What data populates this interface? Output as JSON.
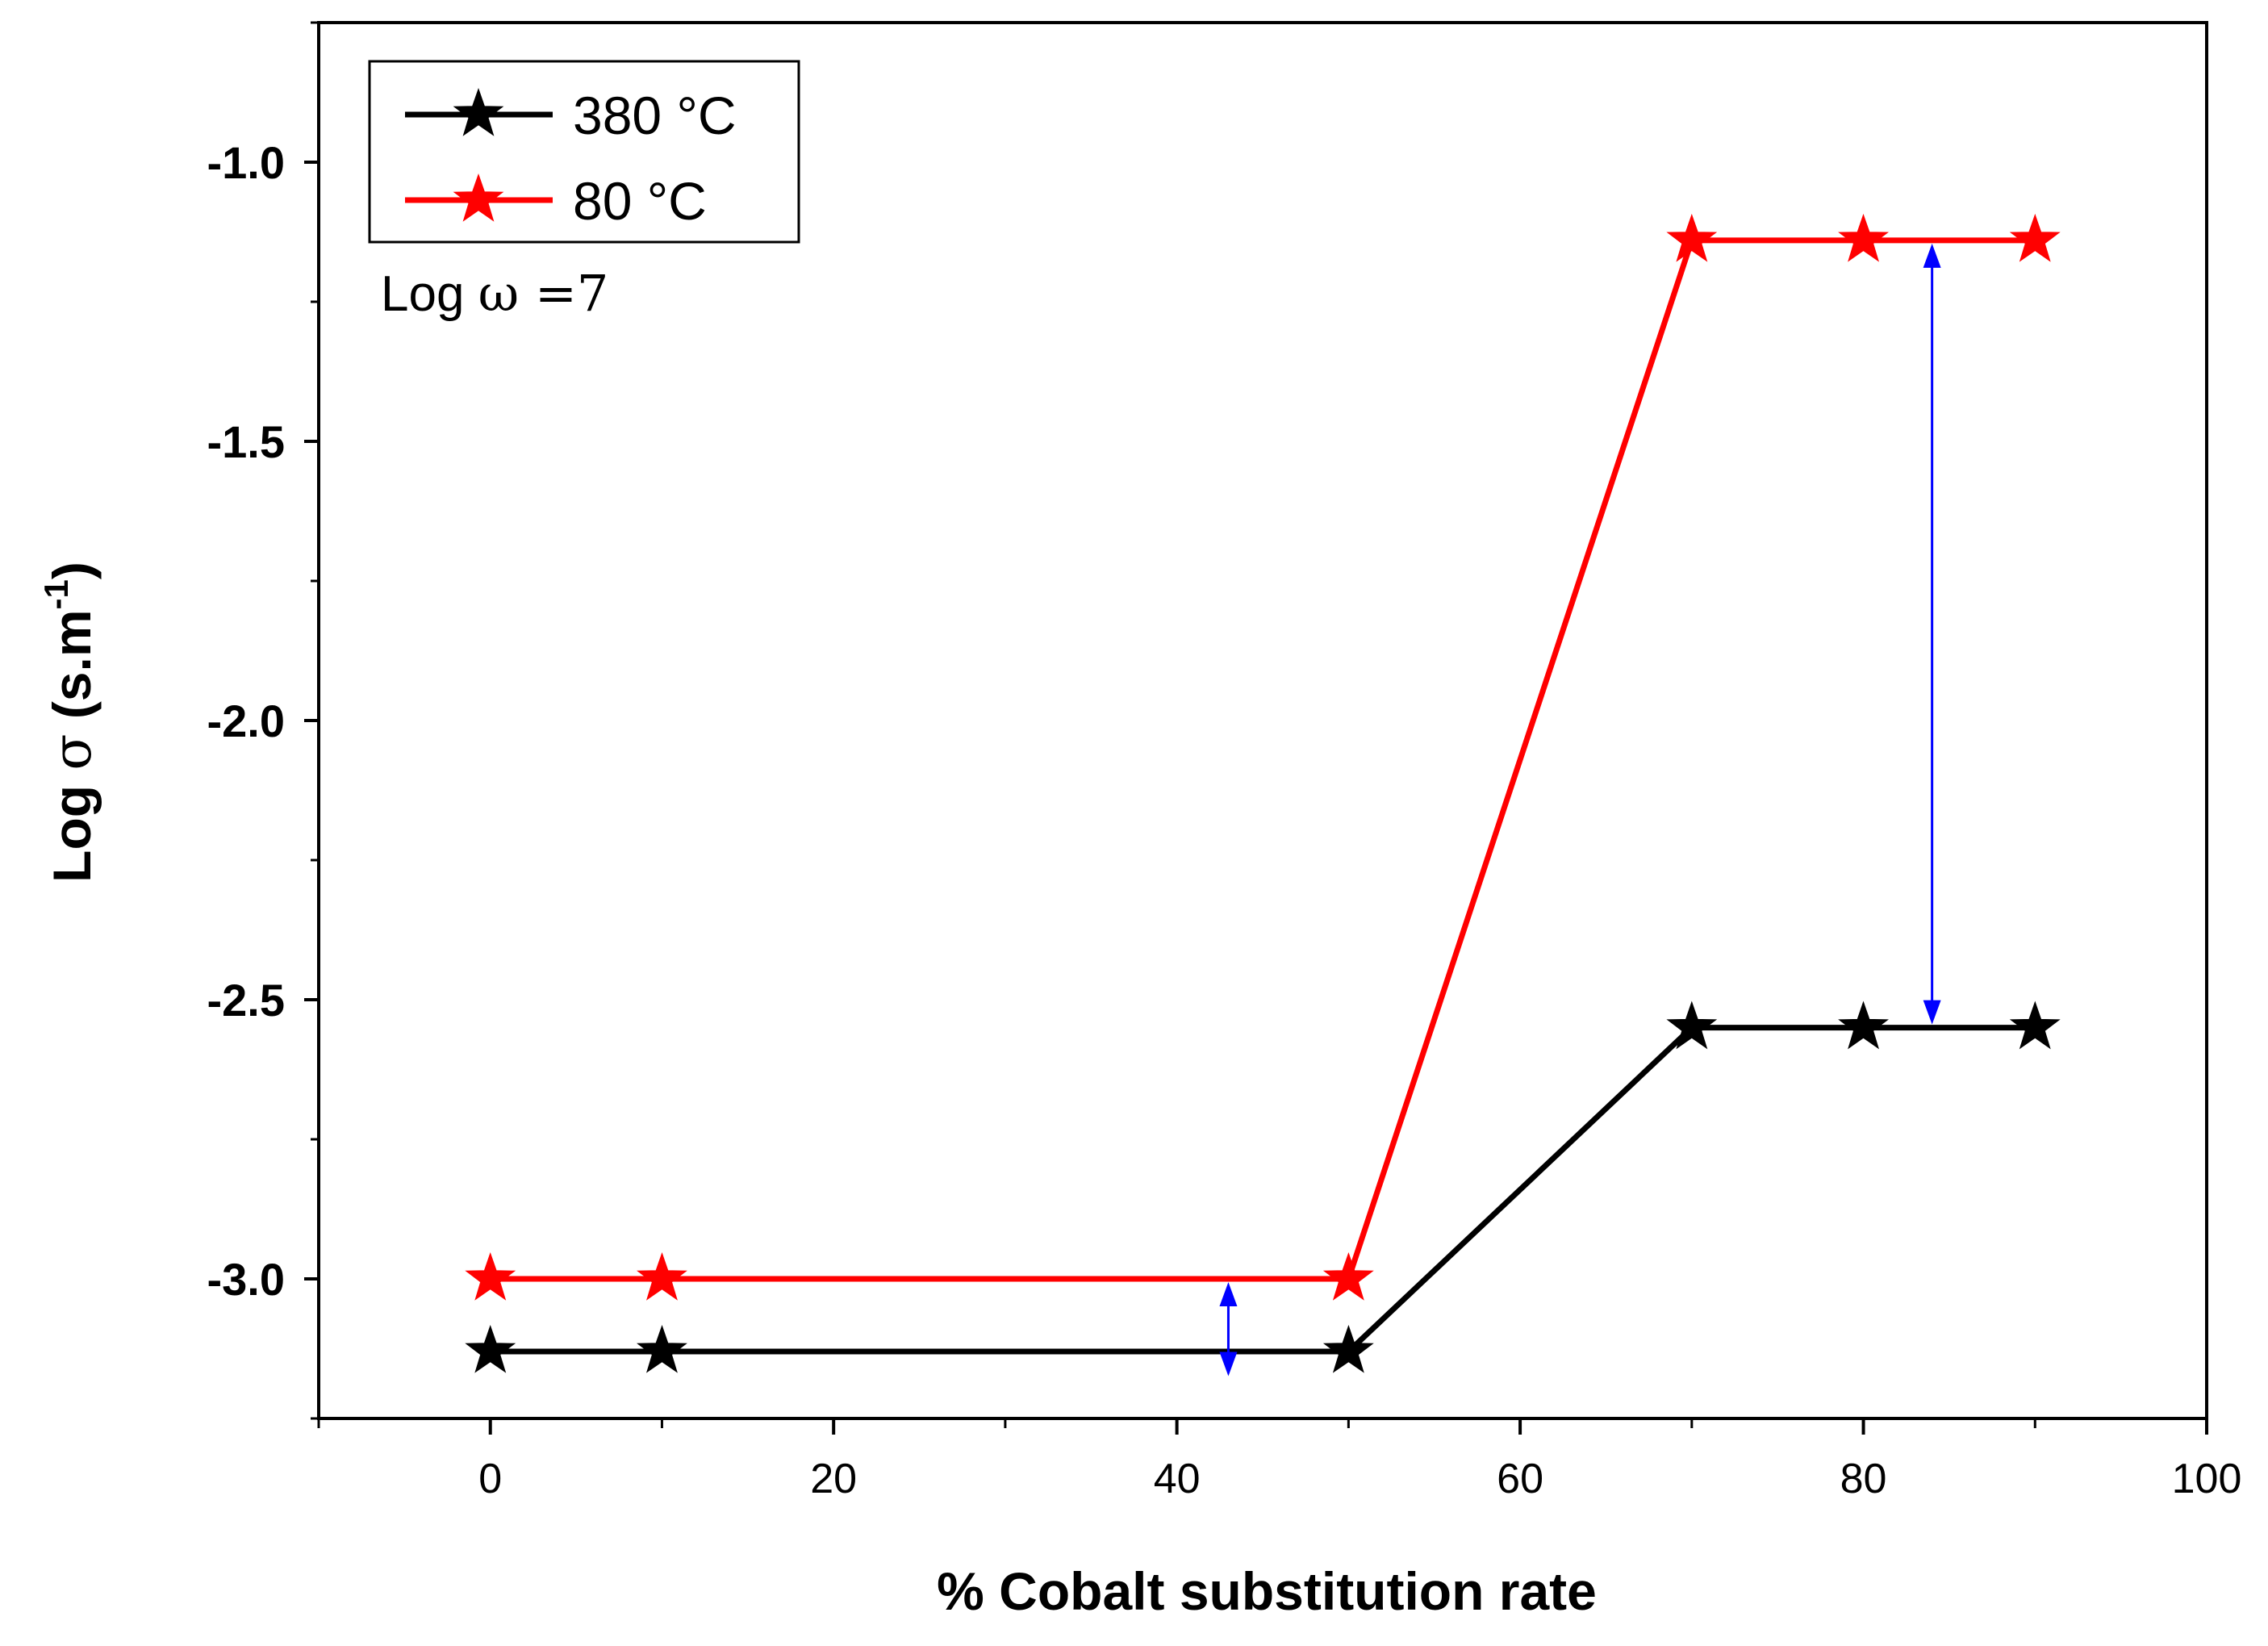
{
  "chart_data": {
    "type": "line",
    "title": "",
    "xlabel": "% Cobalt substitution rate",
    "ylabel": {
      "prefix": "Log ",
      "symbol": "σ",
      "unit": " (s.m",
      "superscript": "-1",
      "suffix": ")"
    },
    "xlim": [
      -10,
      100
    ],
    "ylim": [
      -3.25,
      -0.75
    ],
    "x_ticks": [
      0,
      20,
      40,
      60,
      80,
      100
    ],
    "x_tick_labels": [
      "0",
      "20",
      "40",
      "60",
      "80",
      "100"
    ],
    "y_ticks": [
      -3.0,
      -2.5,
      -2.0,
      -1.5,
      -1.0
    ],
    "y_tick_labels": [
      "-3.0",
      "-2.5",
      "-2.0",
      "-1.5",
      "-1.0"
    ],
    "x": [
      0,
      10,
      50,
      70,
      80,
      90
    ],
    "series": [
      {
        "name": "380 °C",
        "color": "#000000",
        "marker": "star",
        "values": [
          -3.13,
          -3.13,
          -3.13,
          -2.55,
          -2.55,
          -2.55
        ]
      },
      {
        "name": "80 °C",
        "color": "#ff0000",
        "marker": "star",
        "values": [
          -3.0,
          -3.0,
          -3.0,
          -1.14,
          -1.14,
          -1.14
        ]
      }
    ],
    "annotations": [
      {
        "type": "double-arrow",
        "color": "#0000ff",
        "x": 43,
        "y_from": -3.0,
        "y_to": -3.18
      },
      {
        "type": "double-arrow",
        "color": "#0000ff",
        "x": 84,
        "y_from": -1.14,
        "y_to": -2.55
      }
    ],
    "text_annotation": {
      "prefix": "Log ",
      "symbol": "ω",
      "suffix": " =7"
    },
    "legend_position": "top-left",
    "grid": false
  }
}
